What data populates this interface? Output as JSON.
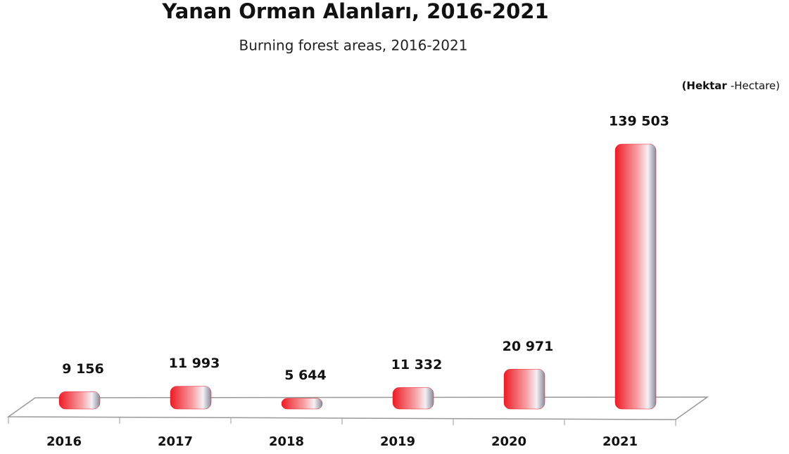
{
  "chart_data": {
    "type": "bar",
    "title": "Yanan Orman Alanları, 2016-2021",
    "subtitle": "Burning forest areas, 2016-2021",
    "unit_label_parts": [
      "(Hektar",
      "-Hectare)"
    ],
    "categories": [
      "2016",
      "2017",
      "2018",
      "2019",
      "2020",
      "2021"
    ],
    "values": [
      9156,
      11993,
      5644,
      11332,
      20971,
      139503
    ],
    "value_labels": [
      "9 156",
      "11 993",
      "5 644",
      "11 332",
      "20 971",
      "139 503"
    ],
    "color": "#ee1c25"
  }
}
